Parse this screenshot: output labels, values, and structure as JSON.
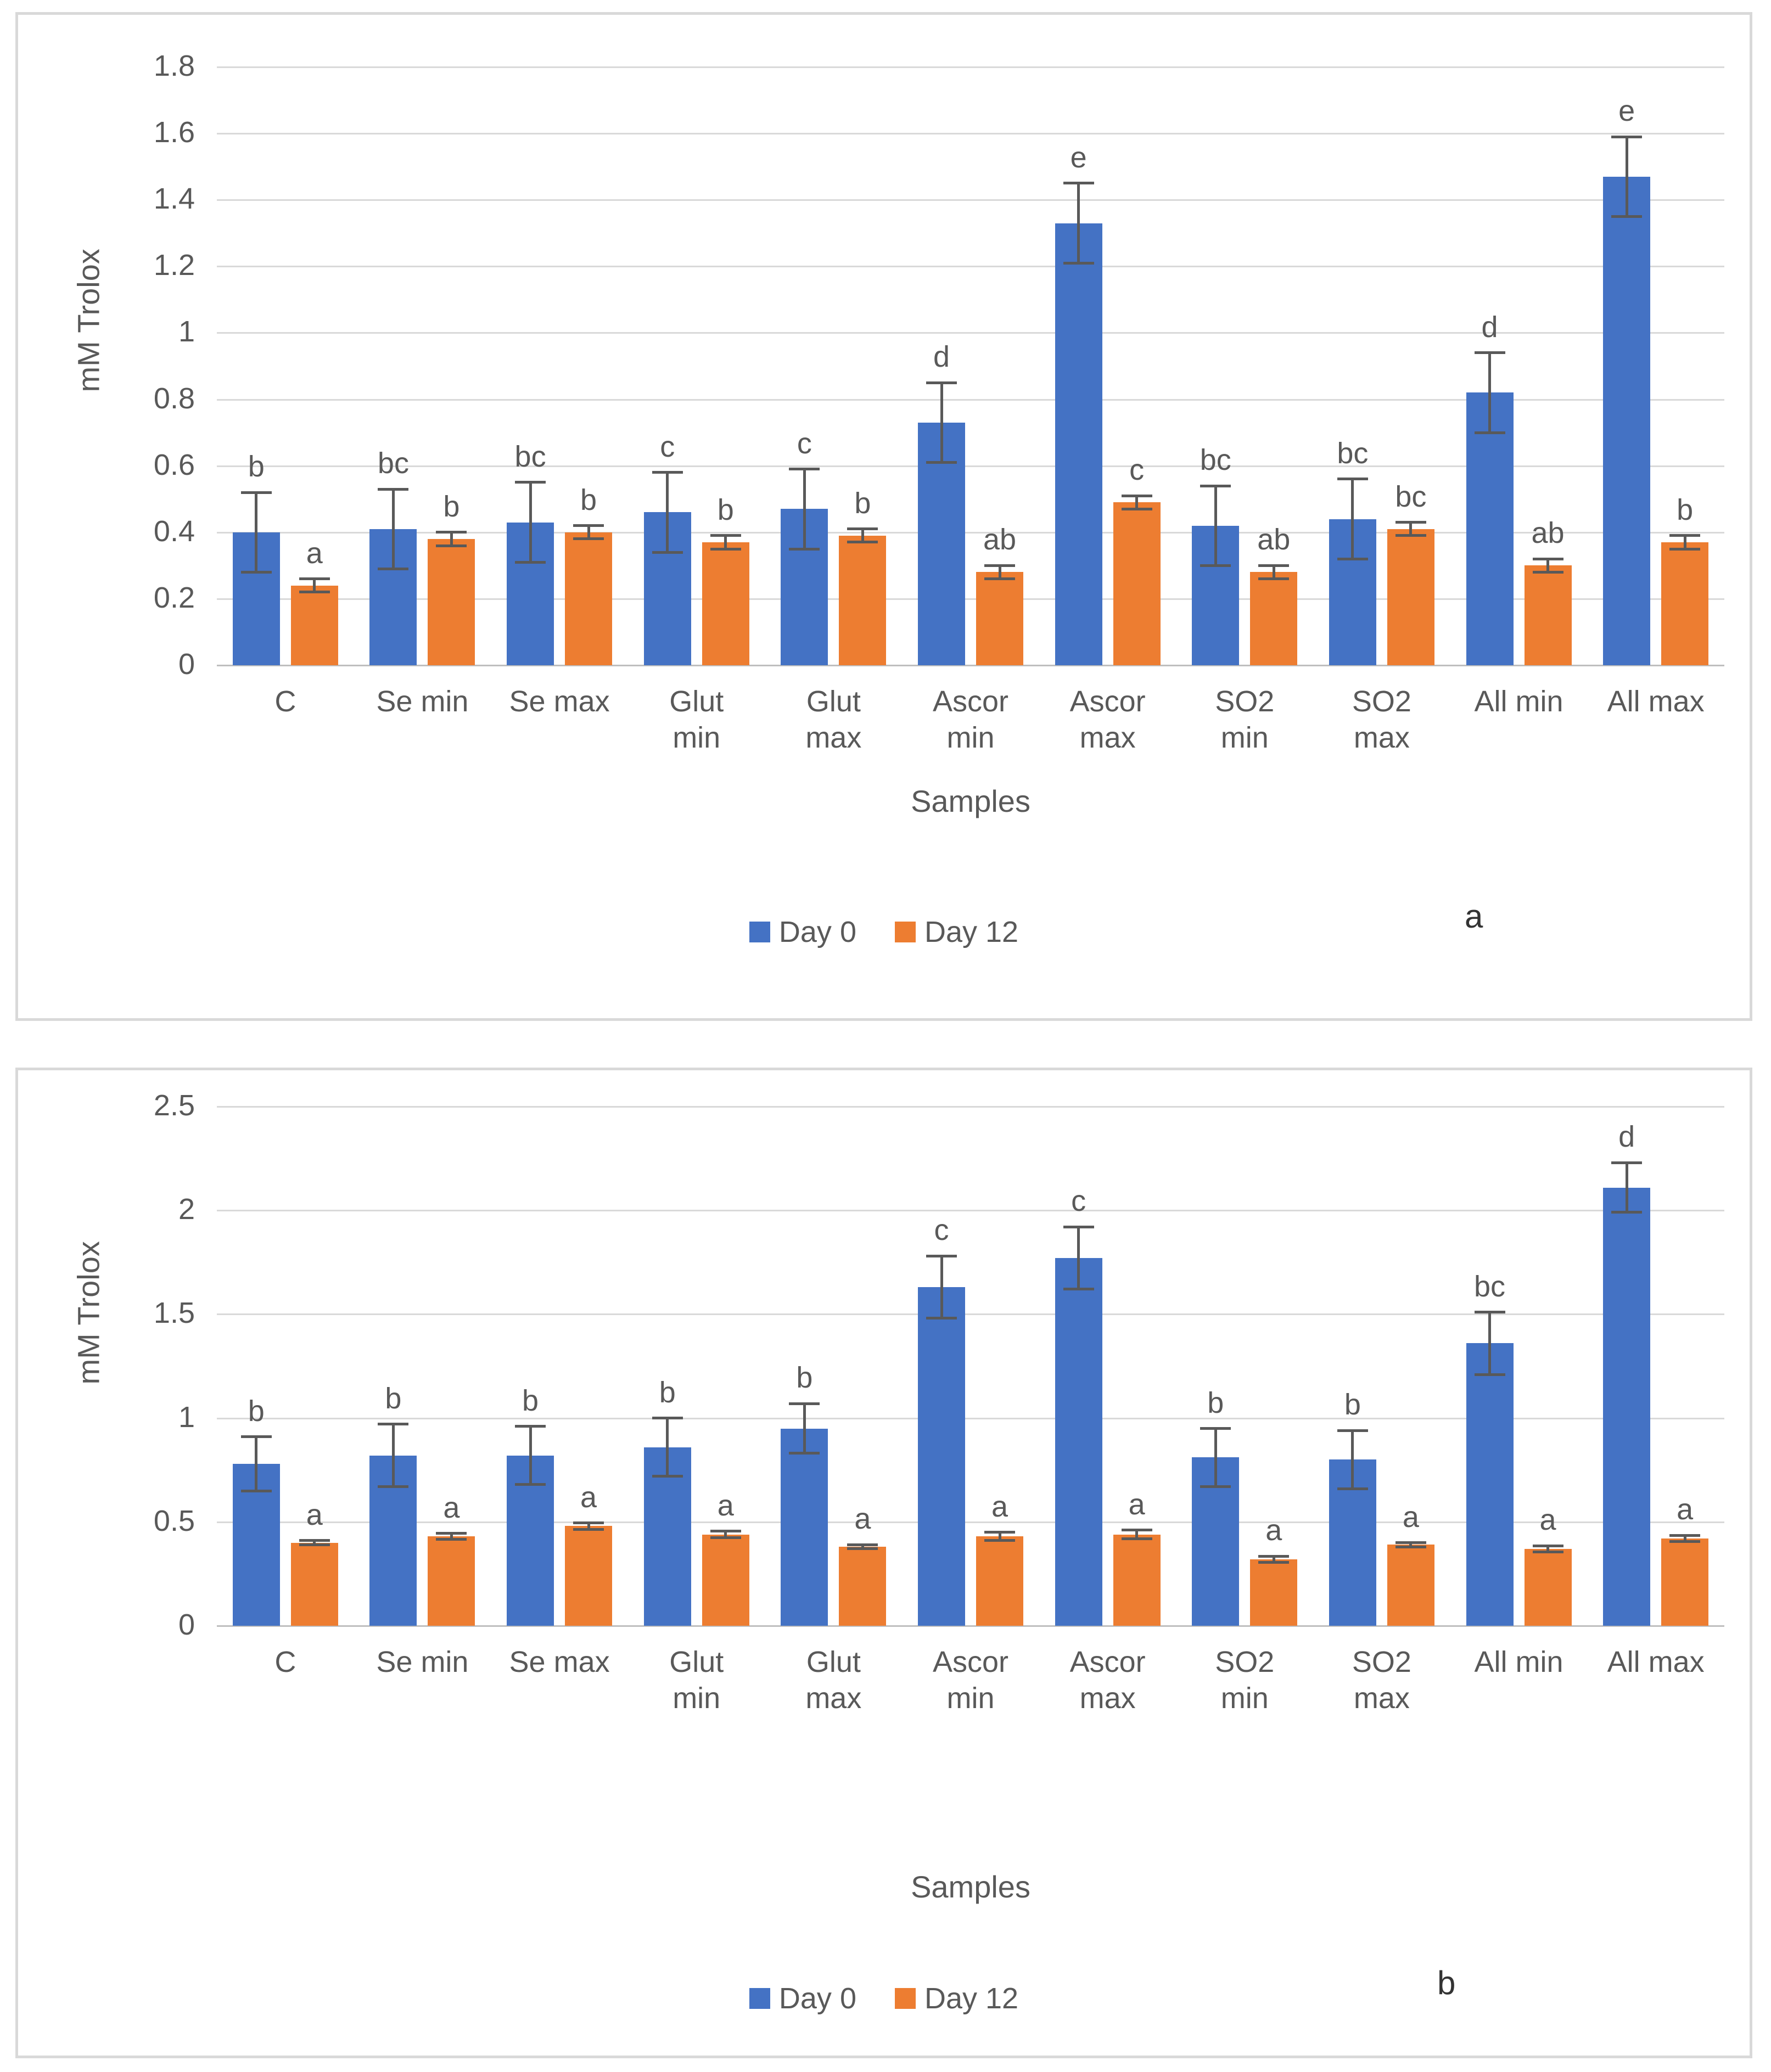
{
  "colors": {
    "day0": "#4472C4",
    "day12": "#ED7D31",
    "gridline": "#D9D9D9",
    "axis_line": "#BFBFBF",
    "error_bar": "#595959",
    "text": "#595959",
    "panel_border": "#D9D9D9",
    "background": "#FFFFFF"
  },
  "chart_data": [
    {
      "type": "bar",
      "panel_letter": "a",
      "xlabel": "Samples",
      "ylabel": "mM Trolox",
      "ylim": [
        0,
        1.8
      ],
      "grid": true,
      "legend_position": "bottom",
      "yticks": [
        "1.8",
        "1.6",
        "1.4",
        "1.2",
        "1",
        "0.8",
        "0.6",
        "0.4",
        "0.2",
        "0"
      ],
      "ytick_values": [
        1.8,
        1.6,
        1.4,
        1.2,
        1,
        0.8,
        0.6,
        0.4,
        0.2,
        0
      ],
      "categories": [
        "C",
        "Se min",
        "Se max",
        "Glut min",
        "Glut max",
        "Ascor min",
        "Ascor max",
        "SO2 min",
        "SO2 max",
        "All min",
        "All max"
      ],
      "category_labels": [
        "C",
        "Se min",
        "Se max",
        "Glut\nmin",
        "Glut\nmax",
        "Ascor\nmin",
        "Ascor\nmax",
        "SO2\nmin",
        "SO2\nmax",
        "All min",
        "All max"
      ],
      "series": [
        {
          "name": "Day 0",
          "color": "#4472C4",
          "values": [
            0.4,
            0.41,
            0.43,
            0.46,
            0.47,
            0.73,
            1.33,
            0.42,
            0.44,
            0.82,
            1.47
          ],
          "errors": [
            0.12,
            0.12,
            0.12,
            0.12,
            0.12,
            0.12,
            0.12,
            0.12,
            0.12,
            0.12,
            0.12
          ],
          "letters": [
            "b",
            "bc",
            "bc",
            "c",
            "c",
            "d",
            "e",
            "bc",
            "bc",
            "d",
            "e"
          ]
        },
        {
          "name": "Day 12",
          "color": "#ED7D31",
          "values": [
            0.24,
            0.38,
            0.4,
            0.37,
            0.39,
            0.28,
            0.49,
            0.28,
            0.41,
            0.3,
            0.37
          ],
          "errors": [
            0.02,
            0.02,
            0.02,
            0.02,
            0.02,
            0.02,
            0.02,
            0.02,
            0.02,
            0.02,
            0.02
          ],
          "letters": [
            "a",
            "b",
            "b",
            "b",
            "b",
            "ab",
            "c",
            "ab",
            "bc",
            "ab",
            "b"
          ]
        }
      ]
    },
    {
      "type": "bar",
      "panel_letter": "b",
      "xlabel": "Samples",
      "ylabel": "mM Trolox",
      "ylim": [
        0,
        2.5
      ],
      "grid": true,
      "legend_position": "bottom",
      "yticks": [
        "2.5",
        "2",
        "1.5",
        "1",
        "0.5",
        "0"
      ],
      "ytick_values": [
        2.5,
        2,
        1.5,
        1,
        0.5,
        0
      ],
      "categories": [
        "C",
        "Se min",
        "Se max",
        "Glut min",
        "Glut max",
        "Ascor min",
        "Ascor max",
        "SO2 min",
        "SO2 max",
        "All min",
        "All max"
      ],
      "category_labels": [
        "C",
        "Se min",
        "Se max",
        "Glut\nmin",
        "Glut\nmax",
        "Ascor\nmin",
        "Ascor\nmax",
        "SO2\nmin",
        "SO2\nmax",
        "All min",
        "All max"
      ],
      "series": [
        {
          "name": "Day 0",
          "color": "#4472C4",
          "values": [
            0.78,
            0.82,
            0.82,
            0.86,
            0.95,
            1.63,
            1.77,
            0.81,
            0.8,
            1.36,
            2.11
          ],
          "errors": [
            0.13,
            0.15,
            0.14,
            0.14,
            0.12,
            0.15,
            0.15,
            0.14,
            0.14,
            0.15,
            0.12
          ],
          "letters": [
            "b",
            "b",
            "b",
            "b",
            "b",
            "c",
            "c",
            "b",
            "b",
            "bc",
            "d"
          ]
        },
        {
          "name": "Day 12",
          "color": "#ED7D31",
          "values": [
            0.4,
            0.43,
            0.48,
            0.44,
            0.38,
            0.43,
            0.44,
            0.32,
            0.39,
            0.37,
            0.42
          ],
          "errors": [
            0.01,
            0.015,
            0.015,
            0.015,
            0.01,
            0.02,
            0.02,
            0.015,
            0.01,
            0.015,
            0.015
          ],
          "letters": [
            "a",
            "a",
            "a",
            "a",
            "a",
            "a",
            "a",
            "a",
            "a",
            "a",
            "a"
          ]
        }
      ]
    }
  ]
}
